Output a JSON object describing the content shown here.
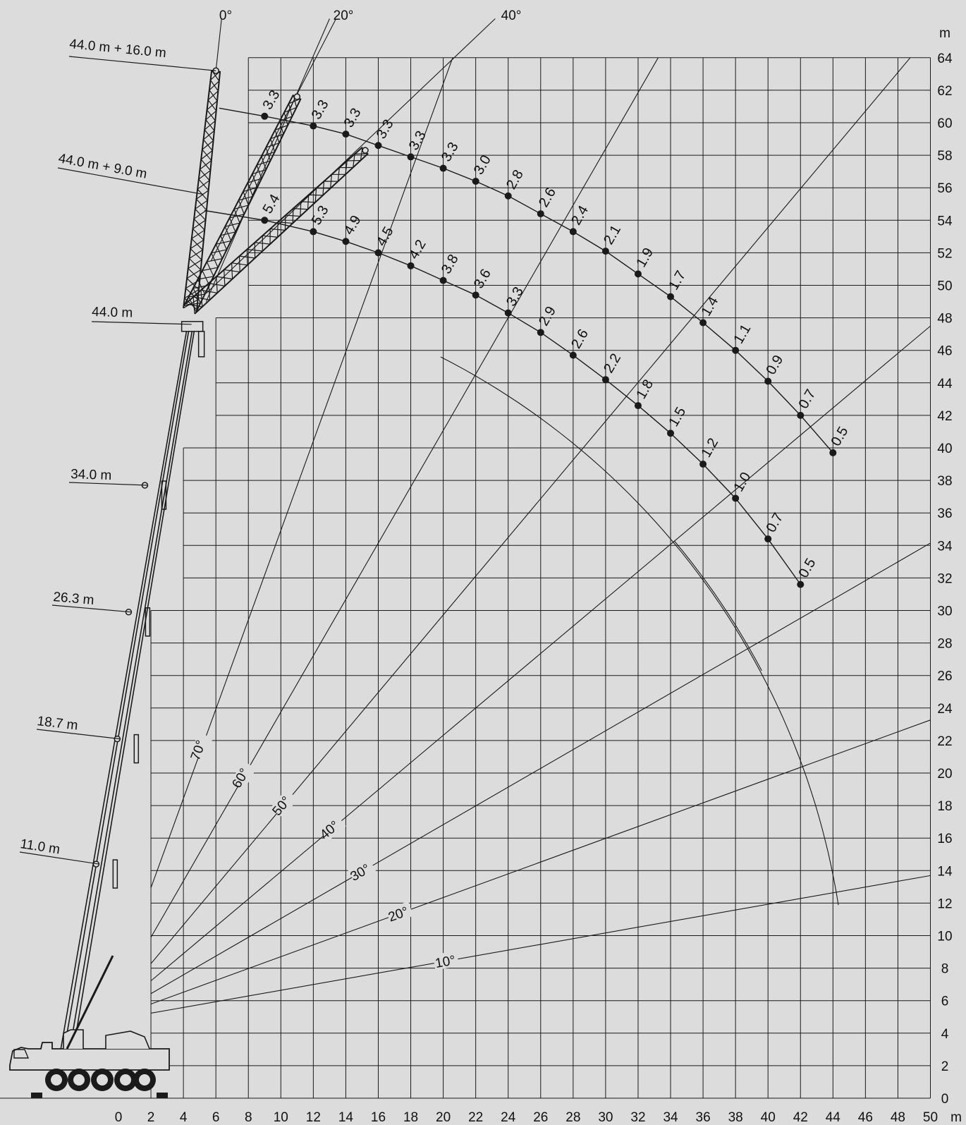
{
  "chart_data": {
    "type": "line",
    "x_unit": "m",
    "y_unit": "m",
    "x_ticks": [
      0,
      2,
      4,
      6,
      8,
      10,
      12,
      14,
      16,
      18,
      20,
      22,
      24,
      26,
      28,
      30,
      32,
      34,
      36,
      38,
      40,
      42,
      44,
      46,
      48,
      50
    ],
    "y_ticks": [
      0,
      2,
      4,
      6,
      8,
      10,
      12,
      14,
      16,
      18,
      20,
      22,
      24,
      26,
      28,
      30,
      32,
      34,
      36,
      38,
      40,
      42,
      44,
      46,
      48,
      50,
      52,
      54,
      56,
      58,
      60,
      62,
      64
    ],
    "xlim": [
      0,
      50
    ],
    "ylim": [
      0,
      64
    ],
    "grid": true,
    "boom_labels": [
      {
        "text": "44.0 m + 16.0 m",
        "tip": [
          6.0,
          63.2
        ]
      },
      {
        "text": "44.0 m + 9.0 m",
        "tip": [
          5.2,
          55.6
        ]
      },
      {
        "text": "44.0 m",
        "tip": [
          4.5,
          47.6
        ]
      },
      {
        "text": "34.0 m",
        "tip": [
          1.8,
          37.7
        ]
      },
      {
        "text": "26.3 m",
        "tip": [
          0.8,
          29.9
        ]
      },
      {
        "text": "18.7 m",
        "tip": [
          0.1,
          22.1
        ]
      },
      {
        "text": "11.0 m",
        "tip": [
          -1.2,
          14.4
        ]
      }
    ],
    "jib_offset_labels": [
      "0°",
      "20°",
      "40°"
    ],
    "boom_angle_labels": [
      "10°",
      "20°",
      "30°",
      "40°",
      "50°",
      "60°",
      "70°"
    ],
    "series": [
      {
        "points": [
          {
            "x": 9,
            "y": 60.4,
            "load": "3.3"
          },
          {
            "x": 12,
            "y": 59.8,
            "load": "3.3"
          },
          {
            "x": 14,
            "y": 59.3,
            "load": "3.3"
          },
          {
            "x": 16,
            "y": 58.6,
            "load": "3.3"
          },
          {
            "x": 18,
            "y": 57.9,
            "load": "3.3"
          },
          {
            "x": 20,
            "y": 57.2,
            "load": "3.3"
          },
          {
            "x": 22,
            "y": 56.4,
            "load": "3.0"
          },
          {
            "x": 24,
            "y": 55.5,
            "load": "2.8"
          },
          {
            "x": 26,
            "y": 54.4,
            "load": "2.6"
          },
          {
            "x": 28,
            "y": 53.3,
            "load": "2.4"
          },
          {
            "x": 30,
            "y": 52.1,
            "load": "2.1"
          },
          {
            "x": 32,
            "y": 50.7,
            "load": "1.9"
          },
          {
            "x": 34,
            "y": 49.3,
            "load": "1.7"
          },
          {
            "x": 36,
            "y": 47.7,
            "load": "1.4"
          },
          {
            "x": 38,
            "y": 46.0,
            "load": "1.1"
          },
          {
            "x": 40,
            "y": 44.1,
            "load": "0.9"
          },
          {
            "x": 42,
            "y": 42.0,
            "load": "0.7"
          },
          {
            "x": 44,
            "y": 39.7,
            "load": "0.5"
          }
        ]
      },
      {
        "points": [
          {
            "x": 9,
            "y": 54.0,
            "load": "5.4"
          },
          {
            "x": 12,
            "y": 53.3,
            "load": "5.3"
          },
          {
            "x": 14,
            "y": 52.7,
            "load": "4.9"
          },
          {
            "x": 16,
            "y": 52.0,
            "load": "4.5"
          },
          {
            "x": 18,
            "y": 51.2,
            "load": "4.2"
          },
          {
            "x": 20,
            "y": 50.3,
            "load": "3.8"
          },
          {
            "x": 22,
            "y": 49.4,
            "load": "3.6"
          },
          {
            "x": 24,
            "y": 48.3,
            "load": "3.3"
          },
          {
            "x": 26,
            "y": 47.1,
            "load": "2.9"
          },
          {
            "x": 28,
            "y": 45.7,
            "load": "2.6"
          },
          {
            "x": 30,
            "y": 44.2,
            "load": "2.2"
          },
          {
            "x": 32,
            "y": 42.6,
            "load": "1.8"
          },
          {
            "x": 34,
            "y": 40.9,
            "load": "1.5"
          },
          {
            "x": 36,
            "y": 39.0,
            "load": "1.2"
          },
          {
            "x": 38,
            "y": 36.9,
            "load": "1.0"
          },
          {
            "x": 40,
            "y": 34.4,
            "load": "0.7"
          },
          {
            "x": 42,
            "y": 31.6,
            "load": "0.5"
          }
        ]
      }
    ]
  }
}
